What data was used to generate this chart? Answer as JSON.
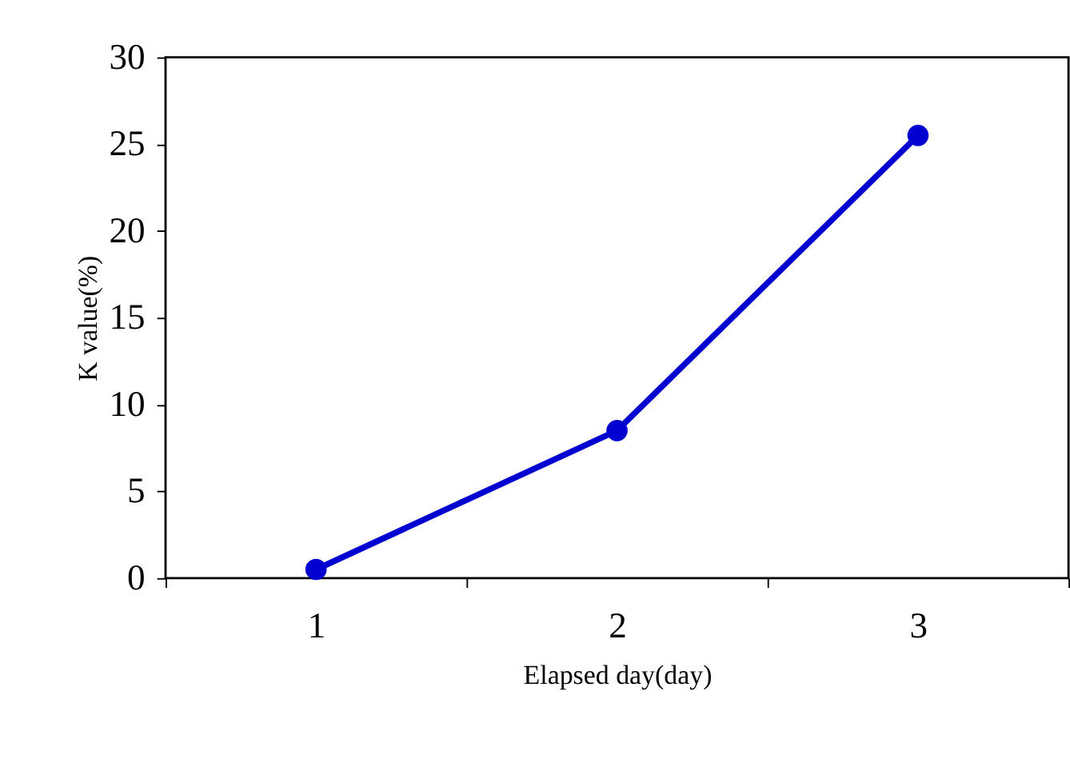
{
  "chart_data": {
    "type": "line",
    "xlabel": "Elapsed day(day)",
    "ylabel": "K value(%)",
    "categories": [
      "1",
      "2",
      "3"
    ],
    "series": [
      {
        "color": "#0000d0",
        "values": [
          0.5,
          8.5,
          25.5
        ]
      }
    ],
    "ylim": [
      0,
      30
    ],
    "yticks": [
      0,
      5,
      10,
      15,
      20,
      25,
      30
    ],
    "grid": false,
    "marker": "circle",
    "line_style": "solid"
  }
}
